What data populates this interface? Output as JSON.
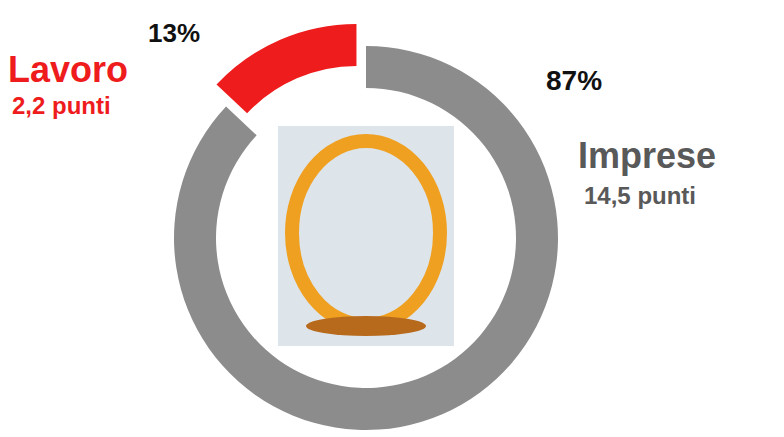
{
  "chart_data": {
    "type": "pie",
    "categories": [
      "Lavoro",
      "Imprese"
    ],
    "values": [
      13,
      87
    ],
    "value_labels": [
      "13%",
      "87%"
    ],
    "points": [
      2.2,
      14.5
    ],
    "point_labels": [
      "2,2 punti",
      "14,5 punti"
    ],
    "colors": [
      "#ee1c1c",
      "#8c8c8c"
    ],
    "data_labels": true
  }
}
